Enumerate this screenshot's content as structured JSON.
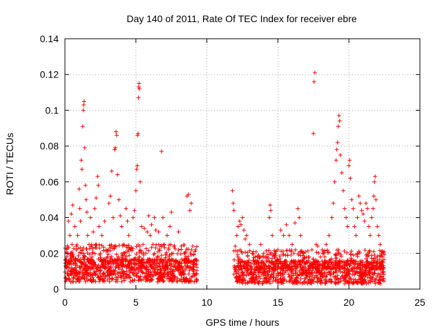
{
  "chart_data": {
    "type": "scatter",
    "title": "Day 140 of 2011, Rate Of TEC Index for receiver ebre",
    "xlabel": "GPS time / hours",
    "ylabel": "ROTI / TECUs",
    "xlim": [
      0,
      25
    ],
    "ylim": [
      0,
      0.14
    ],
    "x_ticks": [
      "0",
      "5",
      "10",
      "15",
      "20",
      "25"
    ],
    "y_ticks": [
      "0",
      "0.02",
      "0.04",
      "0.06",
      "0.08",
      "0.1",
      "0.12",
      "0.14"
    ],
    "x_tick_values": [
      0,
      5,
      10,
      15,
      20,
      25
    ],
    "y_tick_values": [
      0,
      0.02,
      0.04,
      0.06,
      0.08,
      0.1,
      0.12,
      0.14
    ],
    "grid": true,
    "marker": "+",
    "series_color": "#ff0000",
    "data_gap_hours": [
      9.3,
      11.8
    ],
    "series": [
      {
        "name": "ROTI",
        "points": [
          [
            0.1,
            0.012
          ],
          [
            0.2,
            0.02
          ],
          [
            0.25,
            0.038
          ],
          [
            0.3,
            0.015
          ],
          [
            0.35,
            0.03
          ],
          [
            0.4,
            0.01
          ],
          [
            0.45,
            0.042
          ],
          [
            0.5,
            0.025
          ],
          [
            0.55,
            0.047
          ],
          [
            0.6,
            0.018
          ],
          [
            0.7,
            0.035
          ],
          [
            0.75,
            0.012
          ],
          [
            0.8,
            0.022
          ],
          [
            0.9,
            0.03
          ],
          [
            1.0,
            0.056
          ],
          [
            1.05,
            0.045
          ],
          [
            1.1,
            0.038
          ],
          [
            1.15,
            0.072
          ],
          [
            1.2,
            0.067
          ],
          [
            1.25,
            0.091
          ],
          [
            1.3,
            0.1
          ],
          [
            1.32,
            0.103
          ],
          [
            1.35,
            0.105
          ],
          [
            1.4,
            0.079
          ],
          [
            1.45,
            0.058
          ],
          [
            1.5,
            0.05
          ],
          [
            1.55,
            0.043
          ],
          [
            1.6,
            0.03
          ],
          [
            1.7,
            0.025
          ],
          [
            1.8,
            0.04
          ],
          [
            1.9,
            0.018
          ],
          [
            2.0,
            0.032
          ],
          [
            2.1,
            0.045
          ],
          [
            2.2,
            0.051
          ],
          [
            2.3,
            0.063
          ],
          [
            2.35,
            0.058
          ],
          [
            2.4,
            0.035
          ],
          [
            2.5,
            0.02
          ],
          [
            2.6,
            0.03
          ],
          [
            2.7,
            0.015
          ],
          [
            2.8,
            0.038
          ],
          [
            2.9,
            0.022
          ],
          [
            3.0,
            0.018
          ],
          [
            3.1,
            0.048
          ],
          [
            3.2,
            0.052
          ],
          [
            3.3,
            0.066
          ],
          [
            3.4,
            0.04
          ],
          [
            3.5,
            0.078
          ],
          [
            3.55,
            0.079
          ],
          [
            3.6,
            0.088
          ],
          [
            3.65,
            0.086
          ],
          [
            3.7,
            0.064
          ],
          [
            3.8,
            0.05
          ],
          [
            3.9,
            0.041
          ],
          [
            4.0,
            0.035
          ],
          [
            4.1,
            0.025
          ],
          [
            4.2,
            0.02
          ],
          [
            4.3,
            0.045
          ],
          [
            4.4,
            0.038
          ],
          [
            4.5,
            0.03
          ],
          [
            4.6,
            0.022
          ],
          [
            4.7,
            0.016
          ],
          [
            4.8,
            0.04
          ],
          [
            4.9,
            0.044
          ],
          [
            5.0,
            0.055
          ],
          [
            5.05,
            0.067
          ],
          [
            5.1,
            0.069
          ],
          [
            5.12,
            0.086
          ],
          [
            5.15,
            0.087
          ],
          [
            5.18,
            0.107
          ],
          [
            5.2,
            0.113
          ],
          [
            5.22,
            0.115
          ],
          [
            5.25,
            0.112
          ],
          [
            5.3,
            0.06
          ],
          [
            5.4,
            0.035
          ],
          [
            5.5,
            0.025
          ],
          [
            5.6,
            0.034
          ],
          [
            5.7,
            0.02
          ],
          [
            5.8,
            0.032
          ],
          [
            5.9,
            0.041
          ],
          [
            6.0,
            0.03
          ],
          [
            6.1,
            0.036
          ],
          [
            6.2,
            0.025
          ],
          [
            6.3,
            0.04
          ],
          [
            6.4,
            0.033
          ],
          [
            6.5,
            0.018
          ],
          [
            6.6,
            0.032
          ],
          [
            6.8,
            0.077
          ],
          [
            6.9,
            0.04
          ],
          [
            7.0,
            0.025
          ],
          [
            7.2,
            0.03
          ],
          [
            7.4,
            0.035
          ],
          [
            7.5,
            0.043
          ],
          [
            7.6,
            0.02
          ],
          [
            7.8,
            0.015
          ],
          [
            8.0,
            0.032
          ],
          [
            8.2,
            0.024
          ],
          [
            8.4,
            0.02
          ],
          [
            8.6,
            0.052
          ],
          [
            8.7,
            0.053
          ],
          [
            8.8,
            0.044
          ],
          [
            8.9,
            0.048
          ],
          [
            9.0,
            0.024
          ],
          [
            9.1,
            0.016
          ],
          [
            9.2,
            0.022
          ],
          [
            11.8,
            0.055
          ],
          [
            11.85,
            0.048
          ],
          [
            11.9,
            0.044
          ],
          [
            12.0,
            0.024
          ],
          [
            12.1,
            0.03
          ],
          [
            12.2,
            0.035
          ],
          [
            12.3,
            0.038
          ],
          [
            12.4,
            0.036
          ],
          [
            12.5,
            0.04
          ],
          [
            12.6,
            0.033
          ],
          [
            12.7,
            0.028
          ],
          [
            12.8,
            0.03
          ],
          [
            13.0,
            0.025
          ],
          [
            13.2,
            0.02
          ],
          [
            13.4,
            0.018
          ],
          [
            13.6,
            0.015
          ],
          [
            13.8,
            0.025
          ],
          [
            14.0,
            0.02
          ],
          [
            14.2,
            0.018
          ],
          [
            14.4,
            0.04
          ],
          [
            14.45,
            0.047
          ],
          [
            14.5,
            0.044
          ],
          [
            14.6,
            0.03
          ],
          [
            14.8,
            0.02
          ],
          [
            15.0,
            0.022
          ],
          [
            15.2,
            0.033
          ],
          [
            15.4,
            0.03
          ],
          [
            15.6,
            0.036
          ],
          [
            15.8,
            0.03
          ],
          [
            16.0,
            0.025
          ],
          [
            16.2,
            0.037
          ],
          [
            16.4,
            0.045
          ],
          [
            16.5,
            0.04
          ],
          [
            16.6,
            0.03
          ],
          [
            16.8,
            0.02
          ],
          [
            17.0,
            0.015
          ],
          [
            17.2,
            0.018
          ],
          [
            17.4,
            0.022
          ],
          [
            17.5,
            0.087
          ],
          [
            17.55,
            0.116
          ],
          [
            17.6,
            0.121
          ],
          [
            17.7,
            0.025
          ],
          [
            17.8,
            0.024
          ],
          [
            18.0,
            0.018
          ],
          [
            18.2,
            0.02
          ],
          [
            18.4,
            0.025
          ],
          [
            18.6,
            0.03
          ],
          [
            18.8,
            0.04
          ],
          [
            18.9,
            0.048
          ],
          [
            19.0,
            0.06
          ],
          [
            19.1,
            0.072
          ],
          [
            19.15,
            0.078
          ],
          [
            19.2,
            0.082
          ],
          [
            19.25,
            0.091
          ],
          [
            19.3,
            0.097
          ],
          [
            19.35,
            0.094
          ],
          [
            19.4,
            0.075
          ],
          [
            19.5,
            0.065
          ],
          [
            19.6,
            0.055
          ],
          [
            19.7,
            0.045
          ],
          [
            19.8,
            0.04
          ],
          [
            19.9,
            0.035
          ],
          [
            20.0,
            0.069
          ],
          [
            20.05,
            0.072
          ],
          [
            20.1,
            0.062
          ],
          [
            20.2,
            0.05
          ],
          [
            20.3,
            0.045
          ],
          [
            20.4,
            0.035
          ],
          [
            20.5,
            0.03
          ],
          [
            20.6,
            0.04
          ],
          [
            20.7,
            0.052
          ],
          [
            20.8,
            0.048
          ],
          [
            20.9,
            0.044
          ],
          [
            21.0,
            0.042
          ],
          [
            21.1,
            0.038
          ],
          [
            21.2,
            0.048
          ],
          [
            21.3,
            0.045
          ],
          [
            21.4,
            0.035
          ],
          [
            21.5,
            0.03
          ],
          [
            21.6,
            0.04
          ],
          [
            21.7,
            0.045
          ],
          [
            21.75,
            0.052
          ],
          [
            21.8,
            0.06
          ],
          [
            21.85,
            0.063
          ],
          [
            21.9,
            0.05
          ],
          [
            22.0,
            0.035
          ],
          [
            22.1,
            0.03
          ],
          [
            22.2,
            0.025
          ],
          [
            22.3,
            0.02
          ],
          [
            22.4,
            0.015
          ]
        ]
      }
    ],
    "dense_band": {
      "comment": "Densely overlapping low-value points form a near-solid band near the bottom of the plot",
      "segments": [
        {
          "from_hour": 0.0,
          "to_hour": 9.3,
          "min": 0.004,
          "typical": 0.012,
          "max": 0.025
        },
        {
          "from_hour": 11.9,
          "to_hour": 22.5,
          "min": 0.003,
          "typical": 0.011,
          "max": 0.022
        }
      ]
    }
  }
}
